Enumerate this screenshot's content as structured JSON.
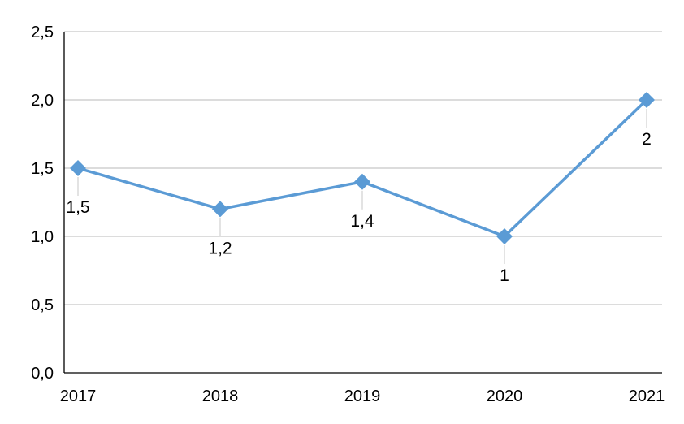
{
  "chart_data": {
    "type": "line",
    "title": "",
    "xlabel": "",
    "ylabel": "",
    "categories": [
      "2017",
      "2018",
      "2019",
      "2020",
      "2021"
    ],
    "series": [
      {
        "values": [
          1.5,
          1.2,
          1.4,
          1.0,
          2.0
        ],
        "data_labels": [
          "1,5",
          "1,2",
          "1,4",
          "1",
          "2"
        ],
        "color": "#5b9bd5",
        "marker": "diamond"
      }
    ],
    "ylim": [
      0,
      2.5
    ],
    "y_ticks": [
      0,
      0.5,
      1.0,
      1.5,
      2.0,
      2.5
    ],
    "y_tick_labels": [
      "0,0",
      "0,5",
      "1,0",
      "1,5",
      "2,0",
      "2,5"
    ],
    "grid": true,
    "grid_color": "#c8c8c8",
    "axis_color": "#000000",
    "leader_line_color": "#d0d0d0",
    "legend": "none",
    "data_label_position": "below"
  }
}
